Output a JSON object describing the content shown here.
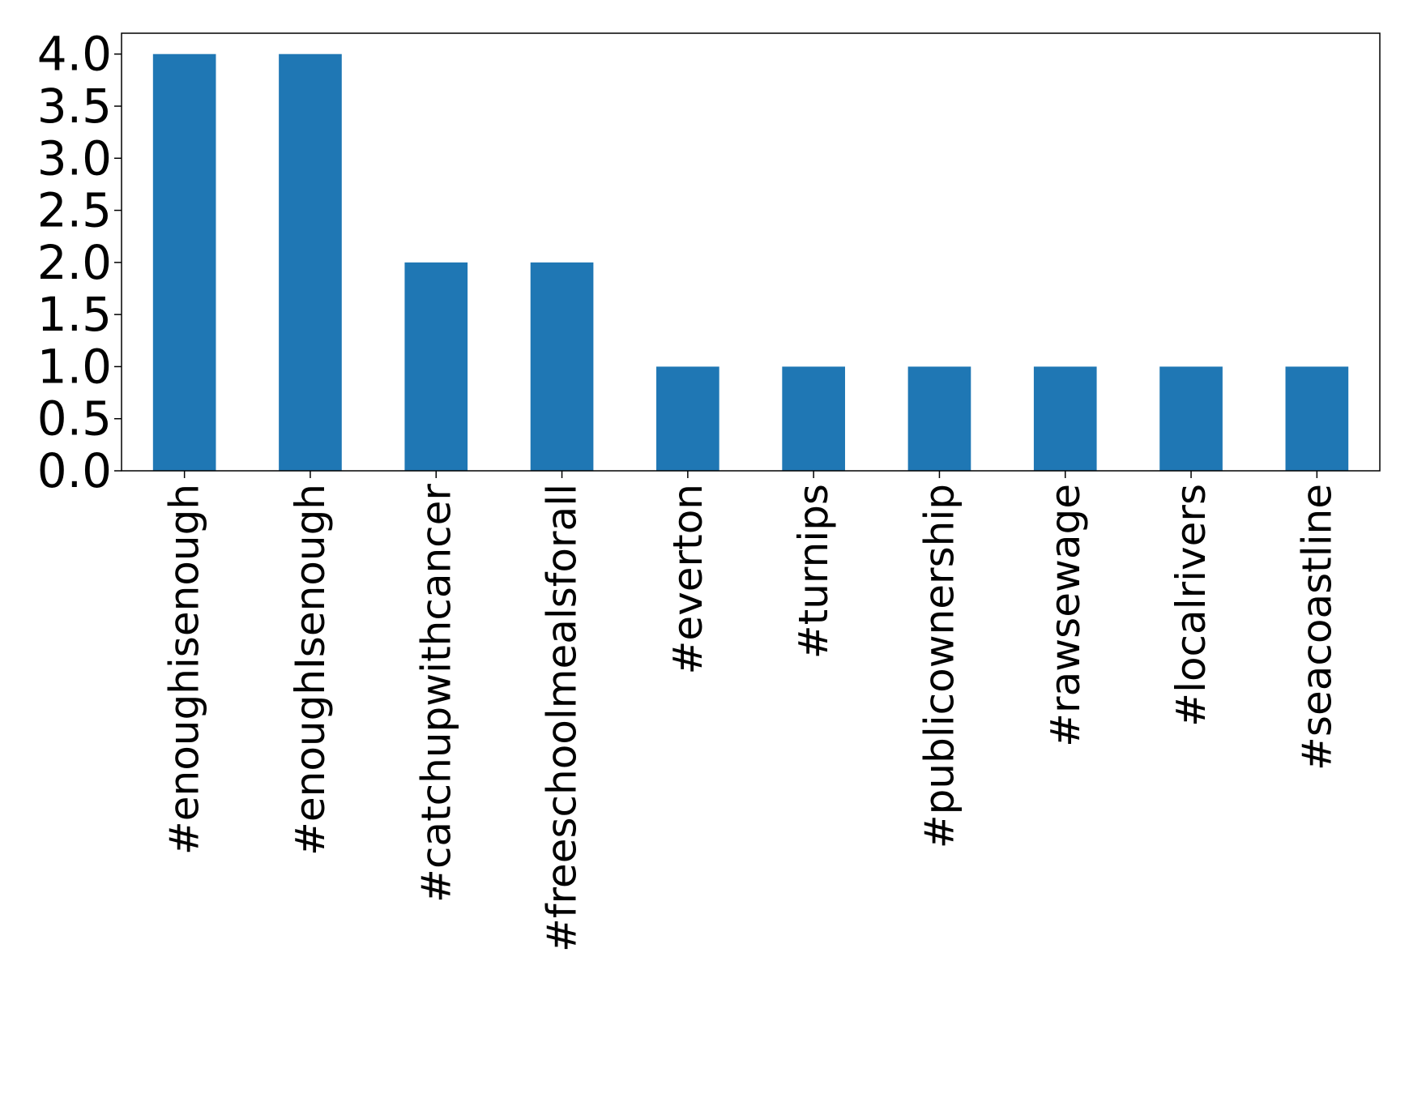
{
  "chart_data": {
    "type": "bar",
    "title": "",
    "xlabel": "",
    "ylabel": "",
    "categories": [
      "#enoughisenough",
      "#enoughIsenough",
      "#catchupwithcancer",
      "#freeschoolmealsforall",
      "#everton",
      "#turnips",
      "#publicownership",
      "#rawsewage",
      "#localrivers",
      "#seacoastline"
    ],
    "values": [
      4,
      4,
      2,
      2,
      1,
      1,
      1,
      1,
      1,
      1
    ],
    "ylim": [
      0,
      4.2
    ],
    "yticks": [
      "0.0",
      "0.5",
      "1.0",
      "1.5",
      "2.0",
      "2.5",
      "3.0",
      "3.5",
      "4.0"
    ],
    "bar_color": "#1f77b4",
    "grid": false,
    "legend": "none"
  }
}
